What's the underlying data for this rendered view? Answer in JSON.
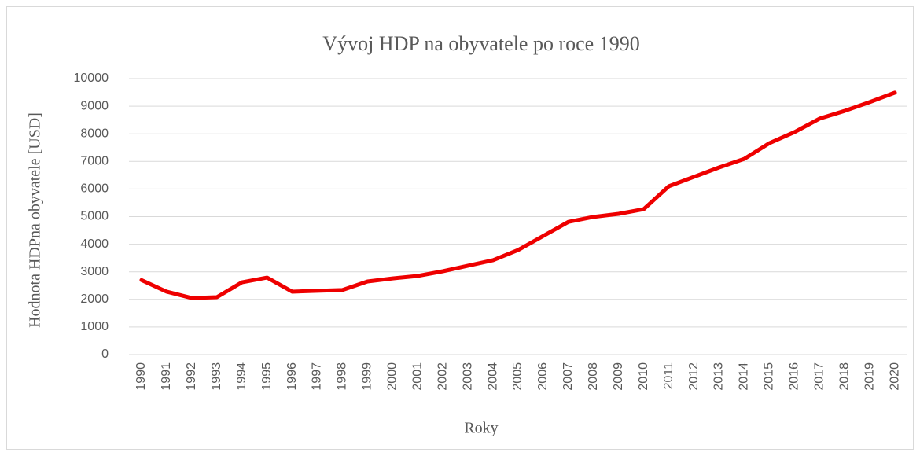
{
  "chart_data": {
    "type": "line",
    "title": "Vývoj HDP na obyvatele po roce 1990",
    "x_label": "Roky",
    "y_label": "Hodnota HDPna obyvatele [USD]",
    "categories": [
      "1990",
      "1991",
      "1992",
      "1993",
      "1994",
      "1995",
      "1996",
      "1997",
      "1998",
      "1999",
      "2000",
      "2001",
      "2002",
      "2003",
      "2004",
      "2005",
      "2006",
      "2007",
      "2008",
      "2009",
      "2010",
      "2011",
      "2012",
      "2013",
      "2014",
      "2015",
      "2016",
      "2017",
      "2018",
      "2019",
      "2020"
    ],
    "series": [
      {
        "name": "HDP na obyvatele",
        "color": "#ee0000",
        "values": [
          2700,
          2280,
          2050,
          2080,
          2620,
          2790,
          2280,
          2310,
          2340,
          2650,
          2760,
          2850,
          3020,
          3220,
          3420,
          3790,
          4300,
          4810,
          4990,
          5100,
          5270,
          6100,
          6440,
          6780,
          7090,
          7660,
          8060,
          8550,
          8830,
          9150,
          9490
        ]
      }
    ],
    "ylim": [
      0,
      10000
    ],
    "yticks": [
      0,
      1000,
      2000,
      3000,
      4000,
      5000,
      6000,
      7000,
      8000,
      9000,
      10000
    ],
    "grid": true
  }
}
